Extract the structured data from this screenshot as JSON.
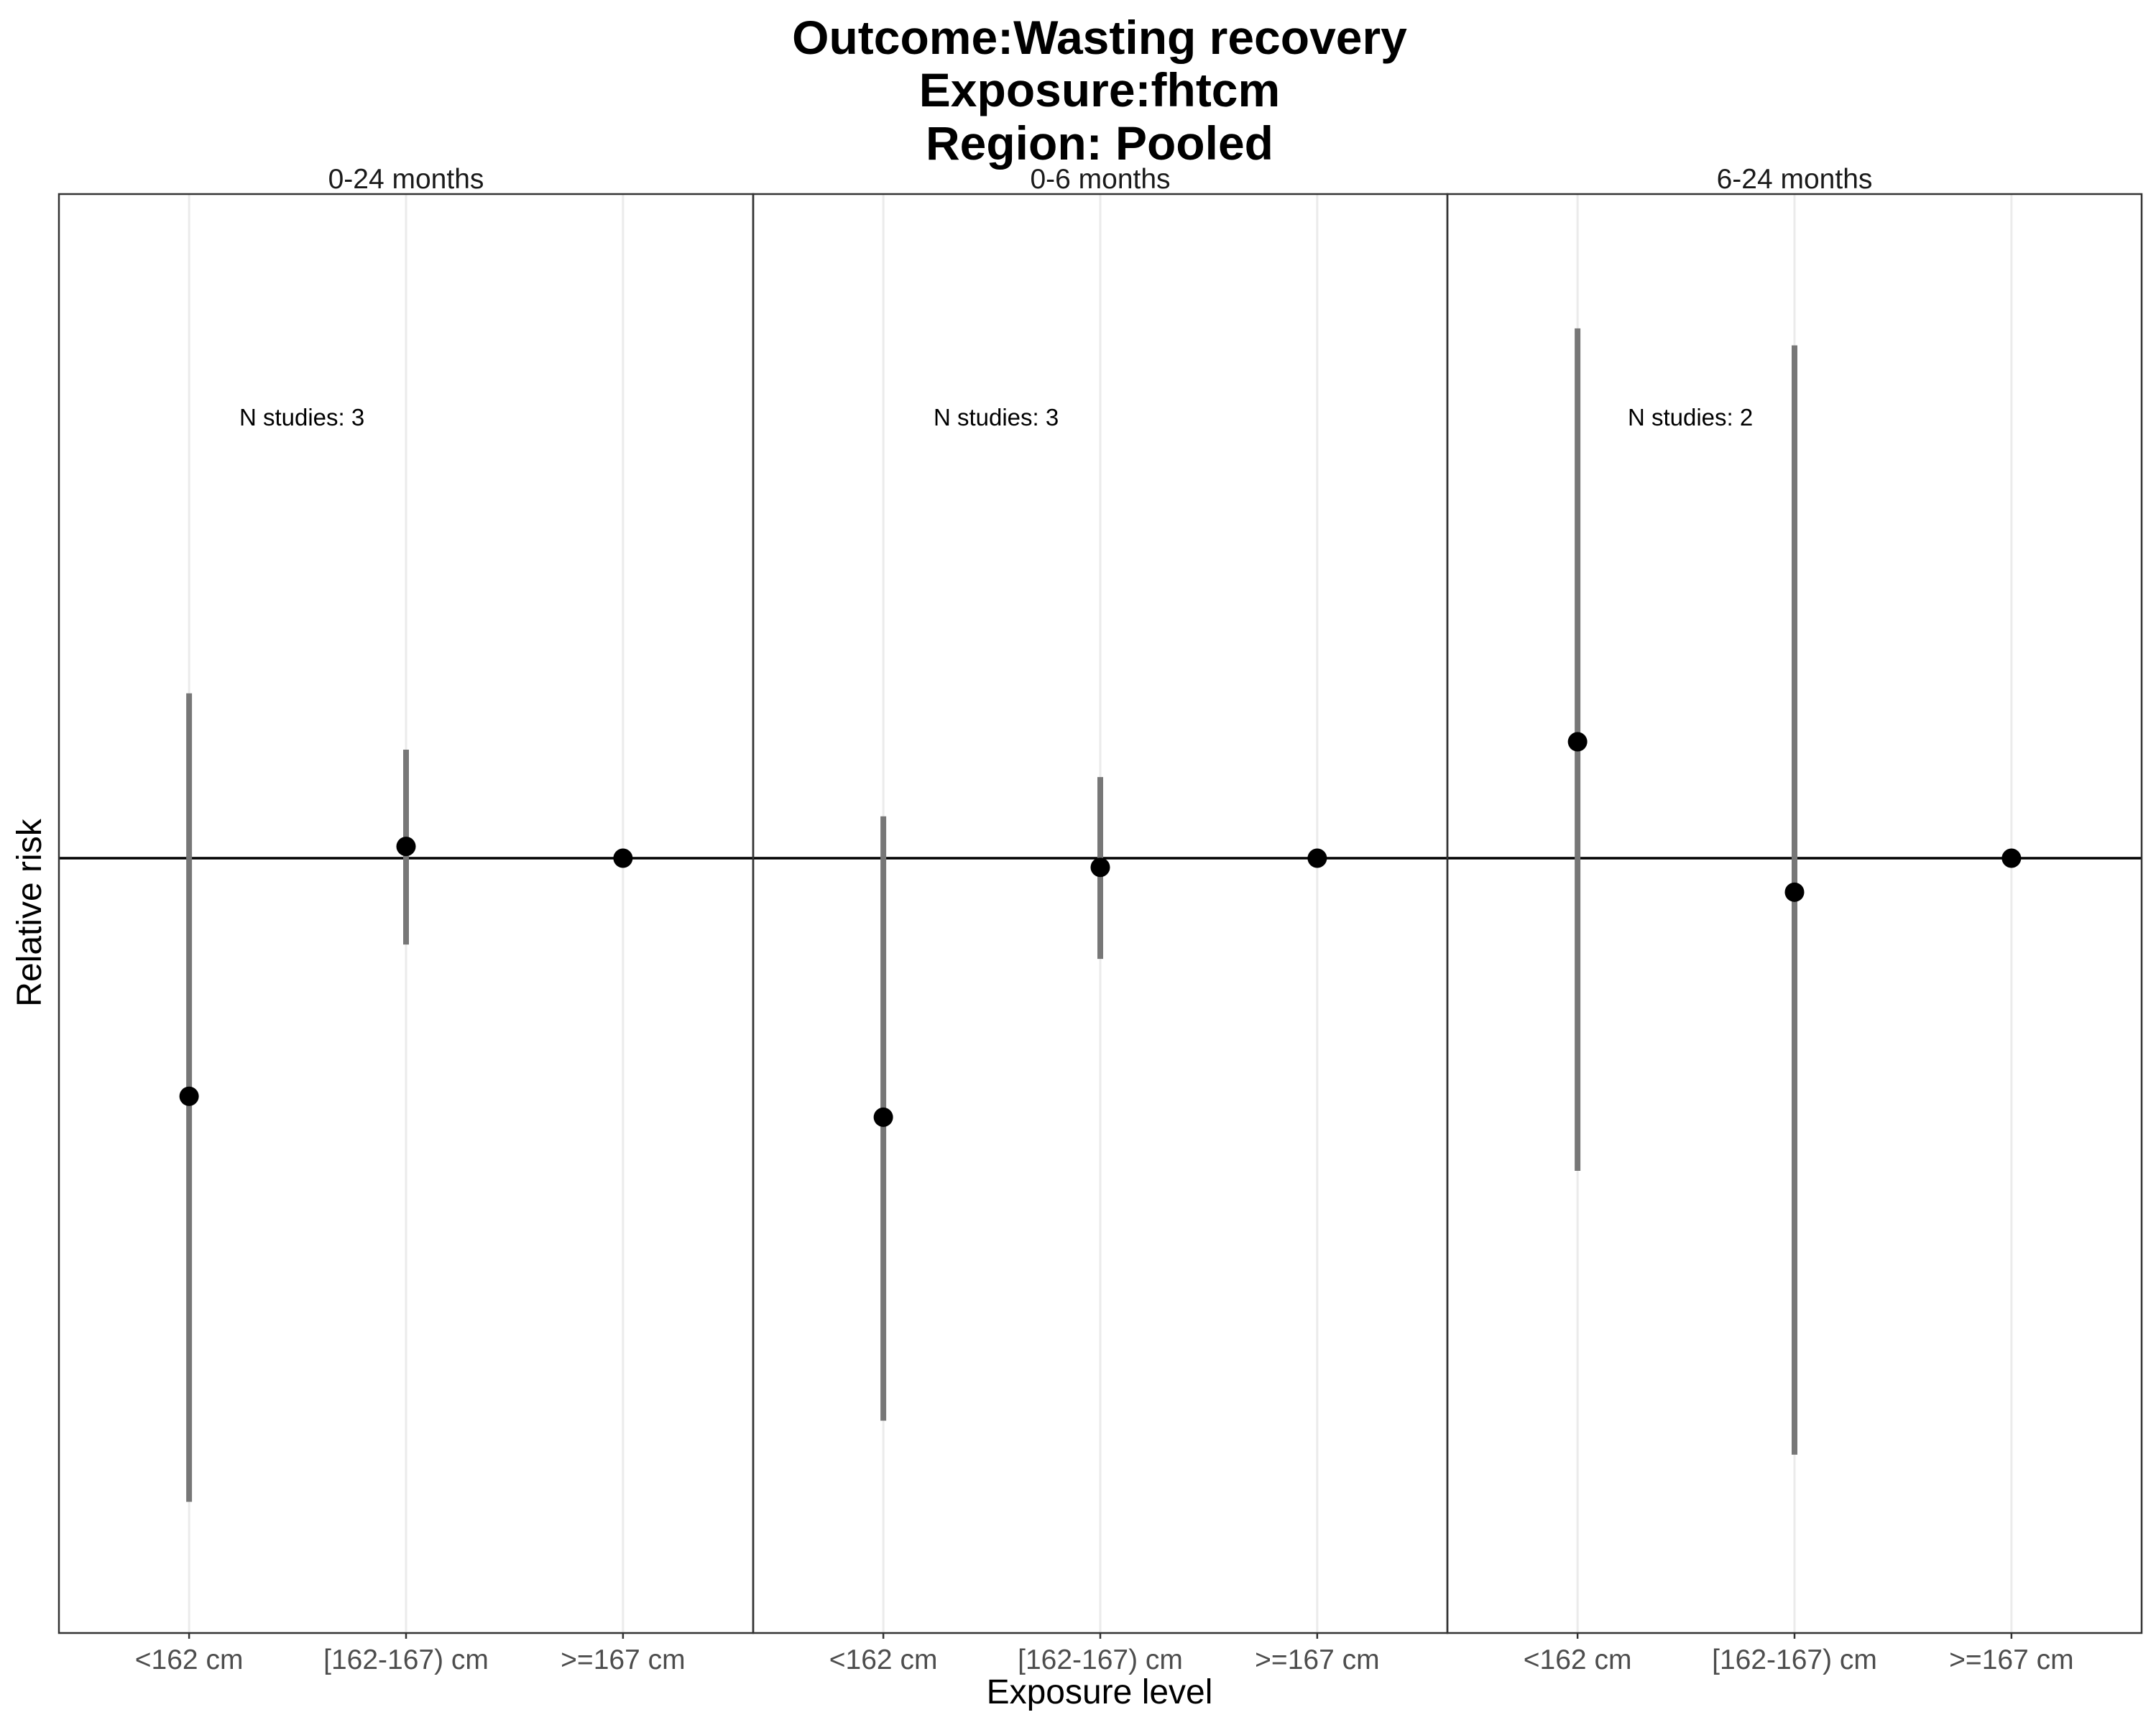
{
  "chart_data": {
    "type": "scatter",
    "title_lines": [
      "Outcome:Wasting recovery",
      "Exposure:fhtcm",
      "Region: Pooled"
    ],
    "xlabel": "Exposure level",
    "ylabel": "Relative risk",
    "categories": [
      "<162 cm",
      "[162-167) cm",
      ">=167 cm"
    ],
    "reference_value": 1.0,
    "ylim": [
      0.45,
      1.45
    ],
    "grid": "vertical",
    "legend": "none",
    "panels": [
      {
        "label": "0-24 months",
        "annotation": "N studies: 3",
        "estimates": [
          0.818,
          1.009,
          1.0
        ],
        "ci_lower": [
          0.508,
          0.934,
          null
        ],
        "ci_upper": [
          1.126,
          1.083,
          null
        ]
      },
      {
        "label": "0-6 months",
        "annotation": "N studies: 3",
        "estimates": [
          0.802,
          0.993,
          1.0
        ],
        "ci_lower": [
          0.57,
          0.923,
          null
        ],
        "ci_upper": [
          1.032,
          1.062,
          null
        ]
      },
      {
        "label": "6-24 months",
        "annotation": "N studies: 2",
        "estimates": [
          1.089,
          0.974,
          1.0
        ],
        "ci_lower": [
          0.761,
          0.544,
          null
        ],
        "ci_upper": [
          1.405,
          1.392,
          null
        ]
      }
    ]
  }
}
